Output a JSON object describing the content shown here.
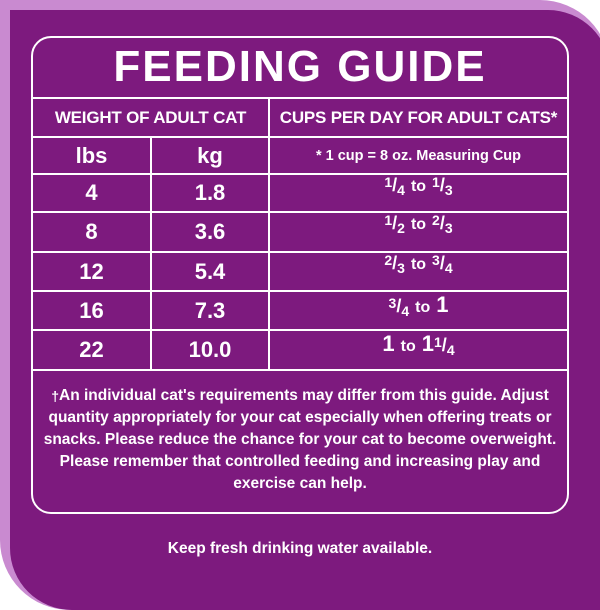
{
  "title": "FEEDING GUIDE",
  "headers": {
    "weight": "WEIGHT OF ADULT CAT",
    "cups": "CUPS PER DAY FOR ADULT CATS*"
  },
  "subheaders": {
    "lbs": "lbs",
    "kg": "kg",
    "measure": "* 1 cup = 8 oz. Measuring Cup"
  },
  "rows": [
    {
      "lbs": "4",
      "kg": "1.8",
      "from": "1/4",
      "to_word": "to",
      "to": "1/3"
    },
    {
      "lbs": "8",
      "kg": "3.6",
      "from": "1/2",
      "to_word": "to",
      "to": "2/3"
    },
    {
      "lbs": "12",
      "kg": "5.4",
      "from": "2/3",
      "to_word": "to",
      "to": "3/4"
    },
    {
      "lbs": "16",
      "kg": "7.3",
      "from": "3/4",
      "to_word": "to",
      "to": "1"
    },
    {
      "lbs": "22",
      "kg": "10.0",
      "from": "1",
      "to_word": "to",
      "to": "1 1/4"
    }
  ],
  "note_dagger": "†",
  "note": "An individual cat's requirements may differ from this guide. Adjust quantity appropriately for your cat especially when offering treats or snacks. Please reduce the chance for your cat to become overweight. Please remember that controlled feeding and increasing play and exercise can help.",
  "footer": "Keep fresh drinking water available.",
  "colors": {
    "border": "#c98ad0",
    "panel": "#7d1a7e",
    "text": "#ffffff"
  }
}
